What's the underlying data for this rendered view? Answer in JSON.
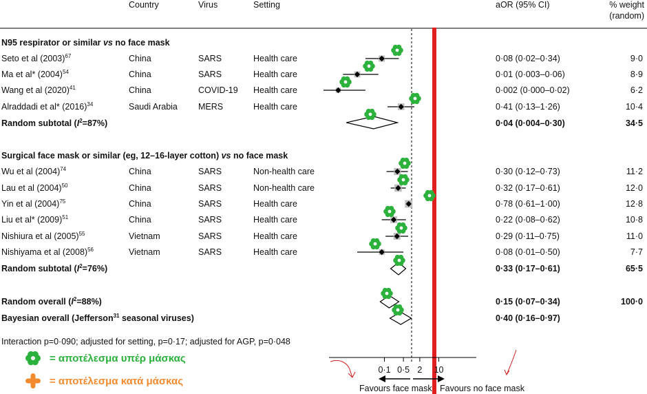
{
  "header": {
    "country": "Country",
    "virus": "Virus",
    "setting": "Setting",
    "aor": "aOR (95% CI)",
    "weight_line1": "% weight",
    "weight_line2": "(random)"
  },
  "sections": [
    {
      "title_pre": "N95 respirator or similar ",
      "title_vs": "vs",
      "title_post": " no face mask",
      "rows": [
        {
          "study": "Seto et al (2003)",
          "ref": "67",
          "country": "China",
          "virus": "SARS",
          "setting": "Health care",
          "aor": "0·08 (0·02–0·34)",
          "weight": "9·0"
        },
        {
          "study": "Ma et al* (2004)",
          "ref": "54",
          "country": "China",
          "virus": "SARS",
          "setting": "Health care",
          "aor": "0·01 (0·003–0·06)",
          "weight": "8·9"
        },
        {
          "study": "Wang et al (2020)",
          "ref": "41",
          "country": "China",
          "virus": "COVID-19",
          "setting": "Health care",
          "aor": "0·002 (0·000–0·02)",
          "weight": "6·2"
        },
        {
          "study": "Alraddadi et al* (2016)",
          "ref": "34",
          "country": "Saudi Arabia",
          "virus": "MERS",
          "setting": "Health care",
          "aor": "0·41 (0·13–1·26)",
          "weight": "10·4"
        }
      ],
      "subtotal": {
        "label_pre": "Random subtotal  (",
        "label_i": "I",
        "label_sq": "2",
        "label_post": "=87%)",
        "aor": "0·04 (0·004–0·30)",
        "weight": "34·5"
      }
    },
    {
      "title_pre": "Surgical face mask or similar (eg, 12–16-layer cotton) ",
      "title_vs": "vs",
      "title_post": " no face mask",
      "rows": [
        {
          "study": "Wu et al (2004)",
          "ref": "74",
          "country": "China",
          "virus": "SARS",
          "setting": "Non-health care",
          "aor": "0·30 (0·12–0·73)",
          "weight": "11·2"
        },
        {
          "study": "Lau et al (2004)",
          "ref": "50",
          "country": "China",
          "virus": "SARS",
          "setting": "Non-health care",
          "aor": "0·32 (0·17–0·61)",
          "weight": "12·0"
        },
        {
          "study": "Yin et al (2004)",
          "ref": "75",
          "country": "China",
          "virus": "SARS",
          "setting": "Health care",
          "aor": "0·78 (0·61–1·00)",
          "weight": "12·8"
        },
        {
          "study": "Liu et al* (2009)",
          "ref": "51",
          "country": "China",
          "virus": "SARS",
          "setting": "Health care",
          "aor": "0·22 (0·08–0·62)",
          "weight": "10·8"
        },
        {
          "study": "Nishiura et al (2005)",
          "ref": "55",
          "country": "Vietnam",
          "virus": "SARS",
          "setting": "Health care",
          "aor": "0·29 (0·11–0·75)",
          "weight": "11·0"
        },
        {
          "study": "Nishiyama et al (2008)",
          "ref": "56",
          "country": "Vietnam",
          "virus": "SARS",
          "setting": "Health care",
          "aor": "0·08 (0·01–0·50)",
          "weight": "7·7"
        }
      ],
      "subtotal": {
        "label_pre": "Random subtotal  (",
        "label_i": "I",
        "label_sq": "2",
        "label_post": "=76%)",
        "aor": "0·33 (0·17–0·61)",
        "weight": "65·5"
      }
    }
  ],
  "overall": {
    "label_pre": "Random overall  (",
    "label_i": "I",
    "label_sq": "2",
    "label_post": "=88%)",
    "aor": "0·15 (0·07–0·34)",
    "weight": "100·0"
  },
  "bayesian": {
    "label_pre": "Bayesian overall (Jefferson",
    "ref": "31",
    "label_post": " seasonal viruses)",
    "aor": "0·40 (0·16–0·97)"
  },
  "interaction": "Interaction p=0·090; adjusted for setting, p=0·17; adjusted for AGP, p=0·048",
  "legend": {
    "pro_label": "= αποτέλεσμα υπέρ μάσκας",
    "con_label": "= αποτέλεσμα κατά μάσκας",
    "pro_color": "#2bb13c",
    "con_color": "#f28b30",
    "pro_icon": "green-flower-icon",
    "con_icon": "orange-cross-icon"
  },
  "axis": {
    "tick_labels": [
      "0·1",
      "0·5",
      "2",
      "10"
    ],
    "favours_left": "Favours face mask",
    "favours_right": "Favours no face mask"
  },
  "chart_data": {
    "type": "forest",
    "scale": "log",
    "xlim": [
      0.001,
      12
    ],
    "xticks": [
      0.1,
      0.5,
      2,
      10
    ],
    "reference_line": 1,
    "red_line": 1,
    "studies": [
      {
        "name": "Seto et al (2003)",
        "estimate": 0.08,
        "lower": 0.02,
        "upper": 0.34,
        "weight": 9.0
      },
      {
        "name": "Ma et al* (2004)",
        "estimate": 0.01,
        "lower": 0.003,
        "upper": 0.06,
        "weight": 8.9
      },
      {
        "name": "Wang et al (2020)",
        "estimate": 0.002,
        "lower": 0.0,
        "upper": 0.02,
        "weight": 6.2
      },
      {
        "name": "Alraddadi et al* (2016)",
        "estimate": 0.41,
        "lower": 0.13,
        "upper": 1.26,
        "weight": 10.4
      },
      {
        "name": "Wu et al (2004)",
        "estimate": 0.3,
        "lower": 0.12,
        "upper": 0.73,
        "weight": 11.2
      },
      {
        "name": "Lau et al (2004)",
        "estimate": 0.32,
        "lower": 0.17,
        "upper": 0.61,
        "weight": 12.0
      },
      {
        "name": "Yin et al (2004)",
        "estimate": 0.78,
        "lower": 0.61,
        "upper": 1.0,
        "weight": 12.8
      },
      {
        "name": "Liu et al* (2009)",
        "estimate": 0.22,
        "lower": 0.08,
        "upper": 0.62,
        "weight": 10.8
      },
      {
        "name": "Nishiura et al (2005)",
        "estimate": 0.29,
        "lower": 0.11,
        "upper": 0.75,
        "weight": 11.0
      },
      {
        "name": "Nishiyama et al (2008)",
        "estimate": 0.08,
        "lower": 0.01,
        "upper": 0.5,
        "weight": 7.7
      }
    ],
    "pooled": [
      {
        "name": "Random subtotal N95",
        "estimate": 0.04,
        "lower": 0.004,
        "upper": 0.3
      },
      {
        "name": "Random subtotal surgical",
        "estimate": 0.33,
        "lower": 0.17,
        "upper": 0.61
      },
      {
        "name": "Random overall",
        "estimate": 0.15,
        "lower": 0.07,
        "upper": 0.34
      },
      {
        "name": "Bayesian overall",
        "estimate": 0.4,
        "lower": 0.16,
        "upper": 0.97
      }
    ]
  }
}
